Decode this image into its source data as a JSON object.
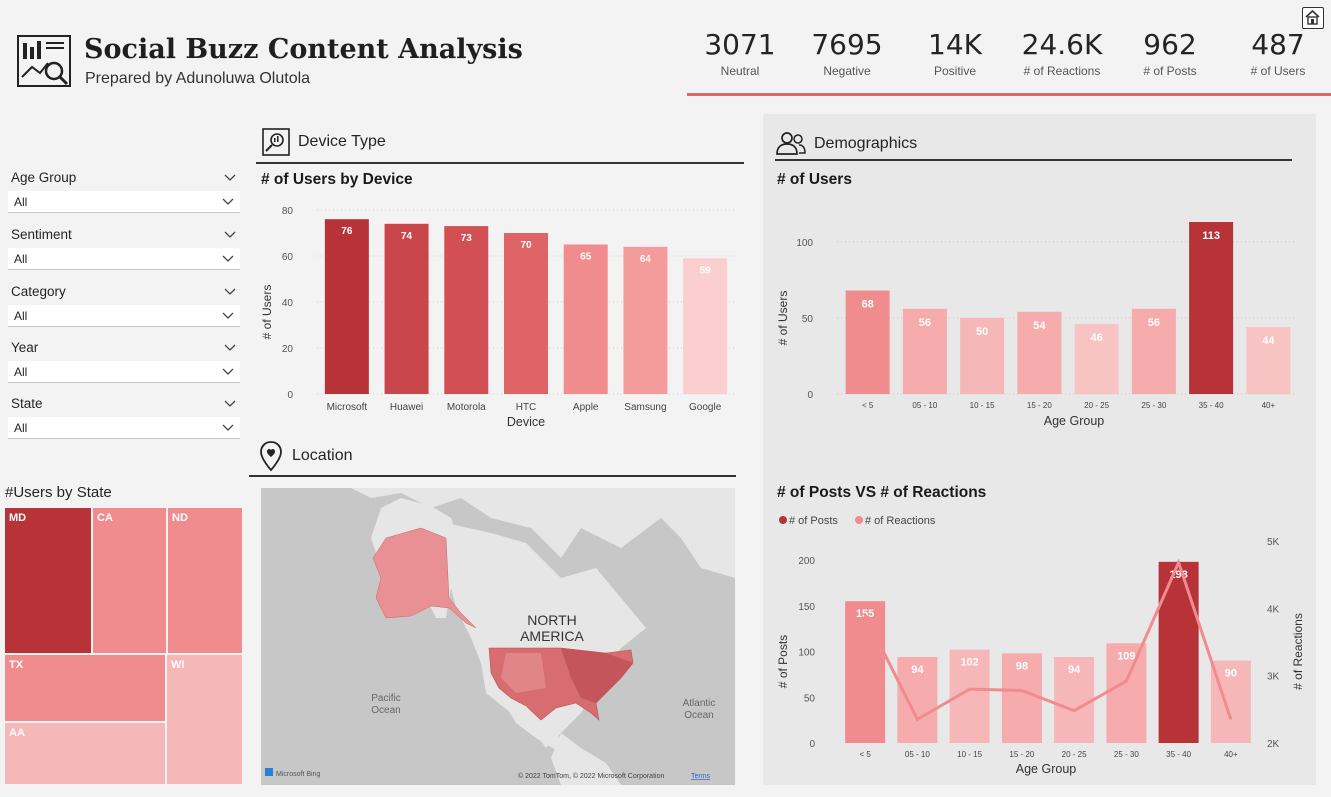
{
  "header": {
    "title": "Social Buzz Content Analysis",
    "subtitle": "Prepared by Adunoluwa Olutola"
  },
  "kpis": [
    {
      "value": "3071",
      "label": "Neutral"
    },
    {
      "value": "7695",
      "label": "Negative"
    },
    {
      "value": "14K",
      "label": "Positive"
    },
    {
      "value": "24.6K",
      "label": "# of Reactions"
    },
    {
      "value": "962",
      "label": "# of Posts"
    },
    {
      "value": "487",
      "label": "# of Users"
    }
  ],
  "slicers": [
    {
      "label": "Age Group",
      "value": "All"
    },
    {
      "label": "Sentiment",
      "value": "All"
    },
    {
      "label": "Category",
      "value": "All"
    },
    {
      "label": "Year",
      "value": "All"
    },
    {
      "label": "State",
      "value": "All"
    }
  ],
  "sections": {
    "device": "Device Type",
    "location": "Location",
    "demographics": "Demographics"
  },
  "treemap": {
    "title": "#Users by State",
    "cells": [
      {
        "label": "MD",
        "color": "#b83337"
      },
      {
        "label": "CA",
        "color": "#f08c8d"
      },
      {
        "label": "ND",
        "color": "#f08c8d"
      },
      {
        "label": "TX",
        "color": "#f08c8d"
      },
      {
        "label": "WI",
        "color": "#f6b7b8"
      },
      {
        "label": "AA",
        "color": "#f6b7b8"
      }
    ]
  },
  "map": {
    "continent_label_1": "NORTH",
    "continent_label_2": "AMERICA",
    "ocean_pacific_1": "Pacific",
    "ocean_pacific_2": "Ocean",
    "ocean_atlantic_1": "Atlantic",
    "ocean_atlantic_2": "Ocean",
    "brand": "Microsoft Bing",
    "copyright": "© 2022 TomTom, © 2022 Microsoft Corporation",
    "terms": "Terms"
  },
  "chart_data": [
    {
      "type": "bar",
      "title": "# of Users by Device",
      "xlabel": "Device",
      "ylabel": "# of Users",
      "ylim": [
        0,
        80
      ],
      "yticks": [
        0,
        20,
        40,
        60,
        80
      ],
      "categories": [
        "Microsoft",
        "Huawei",
        "Motorola",
        "HTC",
        "Apple",
        "Samsung",
        "Google"
      ],
      "values": [
        76,
        74,
        73,
        70,
        65,
        64,
        59
      ],
      "colors": [
        "#b83337",
        "#c9464a",
        "#d24f53",
        "#df6466",
        "#f08c8d",
        "#f49b9c",
        "#fbcfd0"
      ]
    },
    {
      "type": "bar",
      "title": "# of Users",
      "xlabel": "Age Group",
      "ylabel": "# of Users",
      "ylim": [
        0,
        113
      ],
      "yticks": [
        0,
        50,
        100
      ],
      "categories": [
        "< 5",
        "05 - 10",
        "10 - 15",
        "15 - 20",
        "20 - 25",
        "25 - 30",
        "35 - 40",
        "40+"
      ],
      "values": [
        68,
        56,
        50,
        54,
        46,
        56,
        113,
        44
      ],
      "colors": [
        "#f08c8d",
        "#f6abac",
        "#f6b7b8",
        "#f6abac",
        "#f8c3c3",
        "#f6abac",
        "#b83337",
        "#f8c3c3"
      ]
    },
    {
      "type": "bar+line",
      "title": "# of Posts VS # of Reactions",
      "xlabel": "Age Group",
      "ylabel": "# of Posts",
      "y2label": "# of Reactions",
      "ylim": [
        0,
        200
      ],
      "yticks": [
        0,
        50,
        100,
        150,
        200
      ],
      "y2ticks": [
        "2K",
        "3K",
        "4K",
        "5K"
      ],
      "y2lim": [
        2000,
        5000
      ],
      "legend": [
        "# of Posts",
        "# of Reactions"
      ],
      "legend_colors": [
        "#b83337",
        "#f08c8d"
      ],
      "categories": [
        "< 5",
        "05 - 10",
        "10 - 15",
        "15 - 20",
        "20 - 25",
        "25 - 30",
        "35 - 40",
        "40+"
      ],
      "series": [
        {
          "name": "# of Posts",
          "values": [
            155,
            94,
            102,
            98,
            94,
            109,
            198,
            90
          ]
        },
        {
          "name": "# of Reactions",
          "values": [
            3900,
            2350,
            2800,
            2780,
            2480,
            2920,
            4680,
            2350
          ]
        }
      ],
      "colors": [
        "#f08c8d",
        "#f6abac",
        "#f6b7b8",
        "#f6abac",
        "#f6b7b8",
        "#f6abac",
        "#b83337",
        "#f6b7b8"
      ]
    }
  ]
}
